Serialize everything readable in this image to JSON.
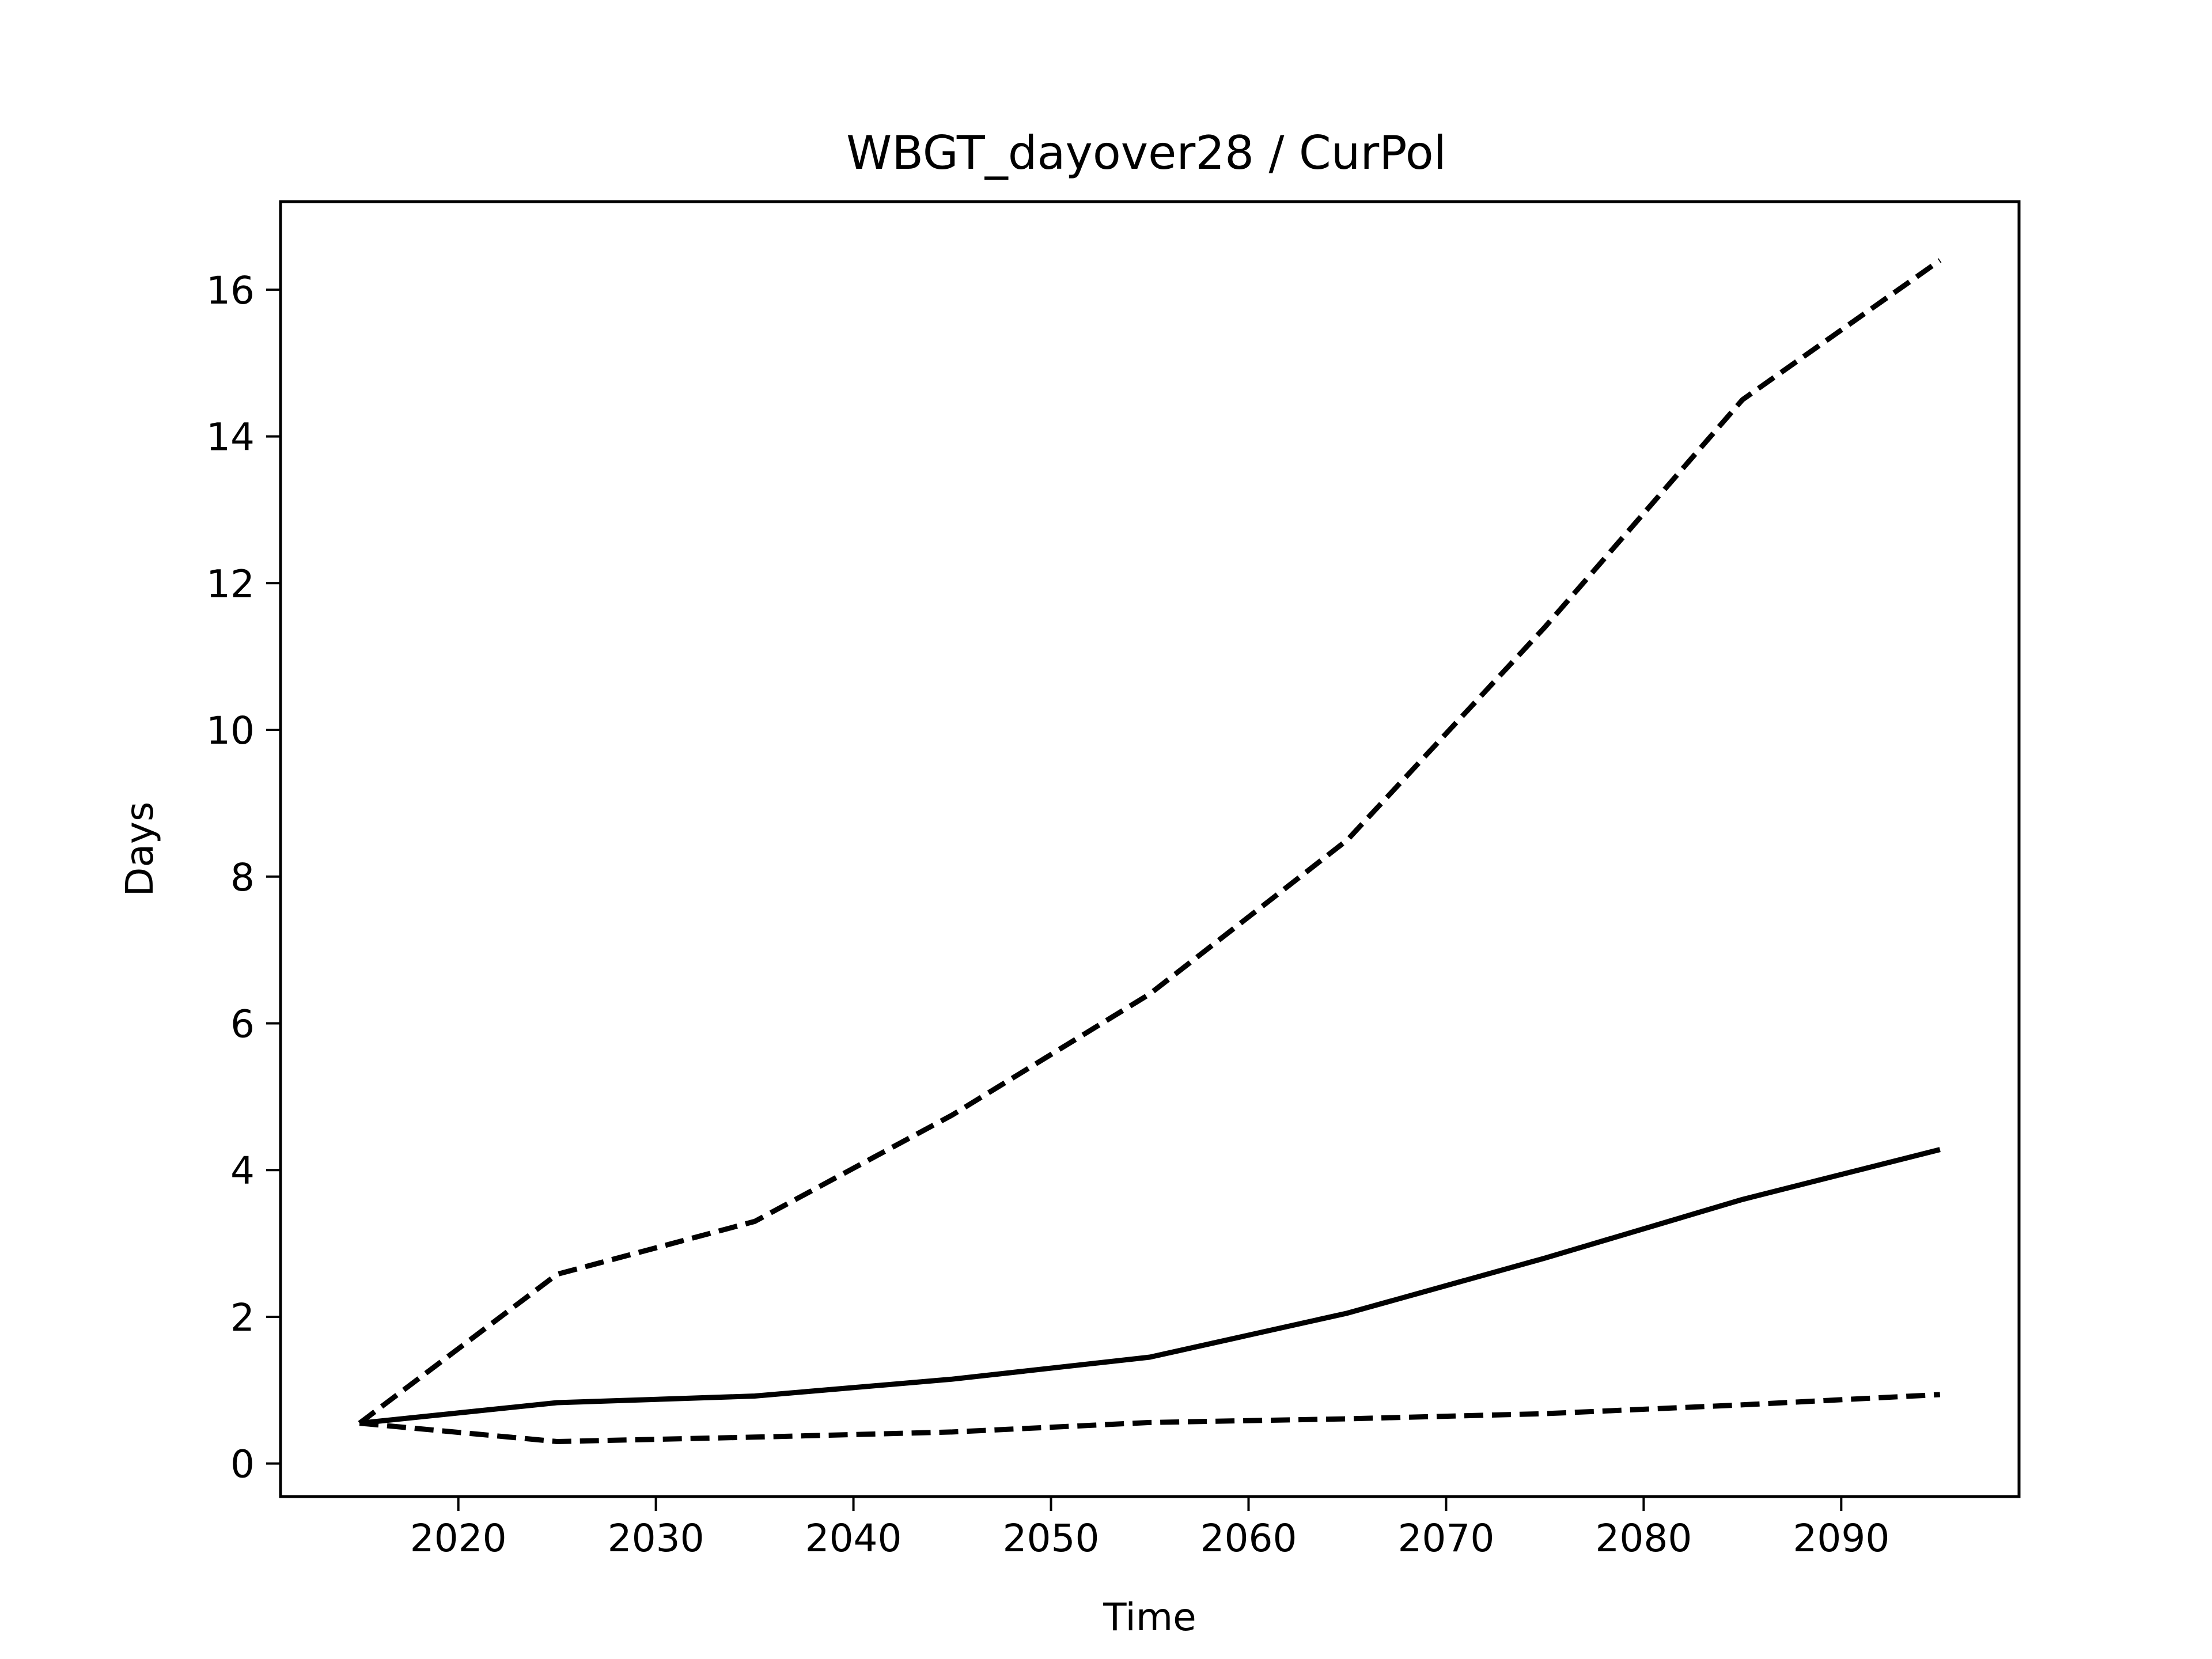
{
  "chart_data": {
    "type": "line",
    "title": "WBGT_dayover28 / CurPol",
    "xlabel": "Time",
    "ylabel": "Days",
    "xlim": [
      2011,
      2099
    ],
    "ylim": [
      -0.45,
      17.2
    ],
    "xticks": [
      2020,
      2030,
      2040,
      2050,
      2060,
      2070,
      2080,
      2090
    ],
    "yticks": [
      0,
      2,
      4,
      6,
      8,
      10,
      12,
      14,
      16
    ],
    "grid": false,
    "legend": "none",
    "color": "#000000",
    "x": [
      2015,
      2025,
      2035,
      2045,
      2055,
      2065,
      2075,
      2085,
      2095
    ],
    "series": [
      {
        "style": "solid",
        "values": [
          0.55,
          0.83,
          0.92,
          1.15,
          1.45,
          2.05,
          2.8,
          3.6,
          4.28
        ]
      },
      {
        "style": "dashed",
        "values": [
          0.55,
          2.58,
          3.3,
          4.75,
          6.4,
          8.5,
          11.4,
          14.5,
          16.4
        ]
      },
      {
        "style": "dashed",
        "values": [
          0.55,
          0.3,
          0.36,
          0.43,
          0.56,
          0.61,
          0.68,
          0.8,
          0.94
        ]
      }
    ]
  }
}
